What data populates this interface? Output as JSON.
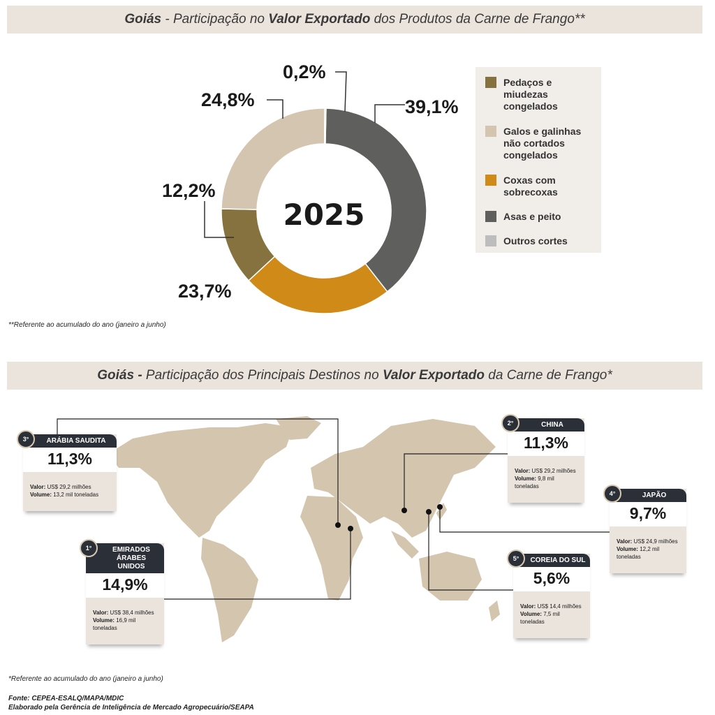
{
  "top": {
    "title_bold": "Goiás",
    "title_mid": " - Participação no ",
    "title_bold2": "Valor Exportado",
    "title_end": " dos Produtos da Carne de Frango**",
    "footnote": "**Referente ao acumulado do ano (janeiro a junho)"
  },
  "chart_data": {
    "type": "pie",
    "title": "Goiás - Participação no Valor Exportado dos Produtos da Carne de Frango**",
    "center_label": "2025",
    "slices": [
      {
        "name": "Asas e peito",
        "value": 39.1,
        "label": "39,1%",
        "color": "#5f5f5d"
      },
      {
        "name": "Coxas com sobrecoxas",
        "value": 23.7,
        "label": "23,7%",
        "color": "#d08a18"
      },
      {
        "name": "Pedaços e miudezas congelados",
        "value": 12.2,
        "label": "12,2%",
        "color": "#86723f"
      },
      {
        "name": "Galos e galinhas não cortados congelados",
        "value": 24.8,
        "label": "24,8%",
        "color": "#d4c5b0"
      },
      {
        "name": "Outros cortes",
        "value": 0.2,
        "label": "0,2%",
        "color": "#bdbdbd"
      }
    ],
    "legend": [
      {
        "label": "Pedaços e miudezas congelados",
        "color": "#86723f"
      },
      {
        "label": "Galos e galinhas não cortados congelados",
        "color": "#d4c5b0"
      },
      {
        "label": "Coxas com sobrecoxas",
        "color": "#d08a18"
      },
      {
        "label": "Asas e peito",
        "color": "#5f5f5d"
      },
      {
        "label": "Outros cortes",
        "color": "#bdbdbd"
      }
    ],
    "legend_position": "right"
  },
  "bottom": {
    "title_bold": "Goiás -",
    "title_mid": " Participação dos Principais Destinos no ",
    "title_bold2": "Valor Exportado",
    "title_end": " da Carne de Frango*",
    "footnote": "*Referente ao acumulado do ano (janeiro a junho)",
    "source": "Fonte: CEPEA-ESALQ/MAPA/MDIC",
    "credit": "Elaborado pela Gerência de Inteligência de Mercado Agropecuário/SEAPA"
  },
  "destinations": [
    {
      "rank": "3°",
      "name": "ARÁBIA SAUDITA",
      "share": "11,3%",
      "valor_label": "Valor:",
      "valor": " US$ 29,2 milhões",
      "volume_label": "Volume:",
      "volume": " 13,2 mil toneladas"
    },
    {
      "rank": "1°",
      "name": "EMIRADOS ÁRABES UNIDOS",
      "share": "14,9%",
      "valor_label": "Valor:",
      "valor": " US$ 38,4 milhões",
      "volume_label": "Volume:",
      "volume": " 16,9 mil toneladas"
    },
    {
      "rank": "2°",
      "name": "CHINA",
      "share": "11,3%",
      "valor_label": "Valor:",
      "valor": " US$ 29,2 milhões",
      "volume_label": "Volume:",
      "volume": " 9,8 mil toneladas"
    },
    {
      "rank": "4°",
      "name": "JAPÃO",
      "share": "9,7%",
      "valor_label": "Valor:",
      "valor": " US$ 24,9 milhões",
      "volume_label": "Volume:",
      "volume": " 12,2 mil toneladas"
    },
    {
      "rank": "5°",
      "name": "COREIA DO SUL",
      "share": "5,6%",
      "valor_label": "Valor:",
      "valor": " US$ 14,4 milhões",
      "volume_label": "Volume:",
      "volume": " 7,5 mil toneladas"
    }
  ]
}
